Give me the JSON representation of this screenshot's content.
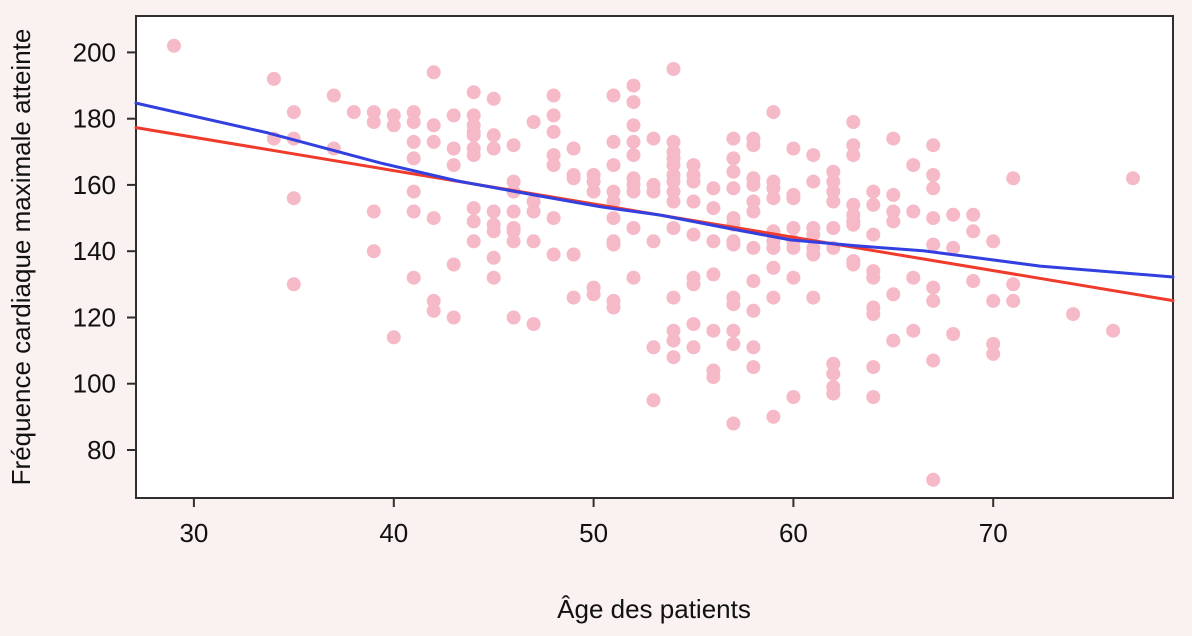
{
  "chart_data": {
    "type": "scatter",
    "title": "",
    "xlabel": "Âge des patients",
    "ylabel": "Fréquence cardiaque maximale atteinte",
    "x_ticks": [
      30,
      40,
      50,
      60,
      70
    ],
    "y_ticks": [
      80,
      100,
      120,
      140,
      160,
      180,
      200
    ],
    "xlim": [
      27.1,
      79.0
    ],
    "ylim": [
      65.5,
      211.0
    ],
    "grid": false,
    "legend": null,
    "colors": {
      "page_bg": "#faf1f1",
      "plot_bg": "#ffffff",
      "frame": "#2e2e2e",
      "text": "#111111",
      "points": "#f5b9c7",
      "line_red": "#ef3b2c",
      "line_blue": "#3340e0"
    },
    "points": [
      [
        29,
        202
      ],
      [
        34,
        192
      ],
      [
        34,
        174
      ],
      [
        35,
        182
      ],
      [
        35,
        174
      ],
      [
        35,
        156
      ],
      [
        35,
        130
      ],
      [
        37,
        187
      ],
      [
        37,
        171
      ],
      [
        38,
        182
      ],
      [
        39,
        182
      ],
      [
        39,
        179
      ],
      [
        39,
        152
      ],
      [
        39,
        140
      ],
      [
        40,
        181
      ],
      [
        40,
        178
      ],
      [
        40,
        114
      ],
      [
        41,
        182
      ],
      [
        41,
        179
      ],
      [
        41,
        173
      ],
      [
        41,
        168
      ],
      [
        41,
        158
      ],
      [
        41,
        152
      ],
      [
        41,
        132
      ],
      [
        42,
        194
      ],
      [
        42,
        178
      ],
      [
        42,
        173
      ],
      [
        42,
        150
      ],
      [
        42,
        125
      ],
      [
        42,
        122
      ],
      [
        43,
        181
      ],
      [
        43,
        171
      ],
      [
        43,
        166
      ],
      [
        43,
        136
      ],
      [
        43,
        120
      ],
      [
        44,
        188
      ],
      [
        44,
        181
      ],
      [
        44,
        178
      ],
      [
        44,
        176
      ],
      [
        44,
        175
      ],
      [
        44,
        171
      ],
      [
        44,
        169
      ],
      [
        44,
        153
      ],
      [
        44,
        149
      ],
      [
        44,
        143
      ],
      [
        45,
        186
      ],
      [
        45,
        175
      ],
      [
        45,
        171
      ],
      [
        45,
        152
      ],
      [
        45,
        148
      ],
      [
        45,
        146
      ],
      [
        45,
        138
      ],
      [
        45,
        132
      ],
      [
        46,
        172
      ],
      [
        46,
        161
      ],
      [
        46,
        158
      ],
      [
        46,
        152
      ],
      [
        46,
        147
      ],
      [
        46,
        146
      ],
      [
        46,
        143
      ],
      [
        46,
        120
      ],
      [
        47,
        179
      ],
      [
        47,
        155
      ],
      [
        47,
        152
      ],
      [
        47,
        143
      ],
      [
        47,
        118
      ],
      [
        48,
        187
      ],
      [
        48,
        181
      ],
      [
        48,
        176
      ],
      [
        48,
        169
      ],
      [
        48,
        166
      ],
      [
        48,
        150
      ],
      [
        48,
        139
      ],
      [
        49,
        171
      ],
      [
        49,
        163
      ],
      [
        49,
        162
      ],
      [
        49,
        139
      ],
      [
        49,
        126
      ],
      [
        50,
        163
      ],
      [
        50,
        161
      ],
      [
        50,
        158
      ],
      [
        50,
        129
      ],
      [
        50,
        127
      ],
      [
        51,
        187
      ],
      [
        51,
        173
      ],
      [
        51,
        166
      ],
      [
        51,
        158
      ],
      [
        51,
        155
      ],
      [
        51,
        150
      ],
      [
        51,
        143
      ],
      [
        51,
        142
      ],
      [
        51,
        125
      ],
      [
        51,
        123
      ],
      [
        52,
        190
      ],
      [
        52,
        185
      ],
      [
        52,
        178
      ],
      [
        52,
        173
      ],
      [
        52,
        169
      ],
      [
        52,
        162
      ],
      [
        52,
        160
      ],
      [
        52,
        158
      ],
      [
        52,
        147
      ],
      [
        52,
        132
      ],
      [
        53,
        174
      ],
      [
        53,
        160
      ],
      [
        53,
        158
      ],
      [
        53,
        143
      ],
      [
        53,
        111
      ],
      [
        53,
        95
      ],
      [
        54,
        195
      ],
      [
        54,
        173
      ],
      [
        54,
        170
      ],
      [
        54,
        168
      ],
      [
        54,
        166
      ],
      [
        54,
        163
      ],
      [
        54,
        161
      ],
      [
        54,
        158
      ],
      [
        54,
        155
      ],
      [
        54,
        147
      ],
      [
        54,
        126
      ],
      [
        54,
        116
      ],
      [
        54,
        113
      ],
      [
        54,
        108
      ],
      [
        55,
        166
      ],
      [
        55,
        163
      ],
      [
        55,
        161
      ],
      [
        55,
        155
      ],
      [
        55,
        145
      ],
      [
        55,
        132
      ],
      [
        55,
        130
      ],
      [
        55,
        118
      ],
      [
        55,
        111
      ],
      [
        56,
        159
      ],
      [
        56,
        153
      ],
      [
        56,
        143
      ],
      [
        56,
        133
      ],
      [
        56,
        116
      ],
      [
        56,
        104
      ],
      [
        56,
        102
      ],
      [
        57,
        174
      ],
      [
        57,
        168
      ],
      [
        57,
        164
      ],
      [
        57,
        159
      ],
      [
        57,
        150
      ],
      [
        57,
        148
      ],
      [
        57,
        143
      ],
      [
        57,
        142
      ],
      [
        57,
        126
      ],
      [
        57,
        124
      ],
      [
        57,
        116
      ],
      [
        57,
        112
      ],
      [
        57,
        88
      ],
      [
        58,
        174
      ],
      [
        58,
        172
      ],
      [
        58,
        162
      ],
      [
        58,
        160
      ],
      [
        58,
        155
      ],
      [
        58,
        152
      ],
      [
        58,
        141
      ],
      [
        58,
        131
      ],
      [
        58,
        122
      ],
      [
        58,
        111
      ],
      [
        58,
        105
      ],
      [
        59,
        182
      ],
      [
        59,
        161
      ],
      [
        59,
        159
      ],
      [
        59,
        156
      ],
      [
        59,
        146
      ],
      [
        59,
        145
      ],
      [
        59,
        143
      ],
      [
        59,
        141
      ],
      [
        59,
        135
      ],
      [
        59,
        126
      ],
      [
        59,
        90
      ],
      [
        60,
        171
      ],
      [
        60,
        157
      ],
      [
        60,
        156
      ],
      [
        60,
        147
      ],
      [
        60,
        143
      ],
      [
        60,
        141
      ],
      [
        60,
        132
      ],
      [
        60,
        96
      ],
      [
        61,
        169
      ],
      [
        61,
        161
      ],
      [
        61,
        147
      ],
      [
        61,
        145
      ],
      [
        61,
        141
      ],
      [
        61,
        139
      ],
      [
        61,
        126
      ],
      [
        62,
        164
      ],
      [
        62,
        161
      ],
      [
        62,
        158
      ],
      [
        62,
        155
      ],
      [
        62,
        147
      ],
      [
        62,
        141
      ],
      [
        62,
        106
      ],
      [
        62,
        103
      ],
      [
        62,
        99
      ],
      [
        62,
        97
      ],
      [
        63,
        179
      ],
      [
        63,
        172
      ],
      [
        63,
        169
      ],
      [
        63,
        154
      ],
      [
        63,
        151
      ],
      [
        63,
        149
      ],
      [
        63,
        148
      ],
      [
        63,
        137
      ],
      [
        63,
        136
      ],
      [
        64,
        158
      ],
      [
        64,
        154
      ],
      [
        64,
        145
      ],
      [
        64,
        134
      ],
      [
        64,
        132
      ],
      [
        64,
        123
      ],
      [
        64,
        121
      ],
      [
        64,
        105
      ],
      [
        64,
        96
      ],
      [
        65,
        174
      ],
      [
        65,
        157
      ],
      [
        65,
        152
      ],
      [
        65,
        149
      ],
      [
        65,
        127
      ],
      [
        65,
        113
      ],
      [
        66,
        166
      ],
      [
        66,
        152
      ],
      [
        66,
        132
      ],
      [
        66,
        116
      ],
      [
        67,
        172
      ],
      [
        67,
        163
      ],
      [
        67,
        159
      ],
      [
        67,
        150
      ],
      [
        67,
        142
      ],
      [
        67,
        129
      ],
      [
        67,
        125
      ],
      [
        67,
        107
      ],
      [
        67,
        71
      ],
      [
        68,
        151
      ],
      [
        68,
        141
      ],
      [
        68,
        115
      ],
      [
        69,
        151
      ],
      [
        69,
        146
      ],
      [
        69,
        131
      ],
      [
        70,
        143
      ],
      [
        70,
        125
      ],
      [
        70,
        112
      ],
      [
        70,
        109
      ],
      [
        71,
        162
      ],
      [
        71,
        130
      ],
      [
        71,
        125
      ],
      [
        74,
        121
      ],
      [
        76,
        116
      ],
      [
        77,
        162
      ]
    ],
    "series": [
      {
        "name": "linear-regression-line",
        "style": "line",
        "color": "#ef3b2c",
        "points": [
          [
            27.1,
            177.3
          ],
          [
            79.0,
            125.1
          ]
        ]
      },
      {
        "name": "smooth-fit-line",
        "style": "curve",
        "color": "#3340e0",
        "points": [
          [
            27.1,
            184.7
          ],
          [
            33.7,
            175.7
          ],
          [
            39.35,
            166.6
          ],
          [
            43.2,
            161.2
          ],
          [
            47.0,
            157.0
          ],
          [
            50.35,
            153.4
          ],
          [
            53.35,
            150.9
          ],
          [
            56.5,
            147.2
          ],
          [
            59.85,
            143.4
          ],
          [
            63.2,
            141.6
          ],
          [
            66.55,
            140.1
          ],
          [
            72.35,
            135.5
          ],
          [
            79.0,
            132.2
          ]
        ]
      }
    ]
  }
}
